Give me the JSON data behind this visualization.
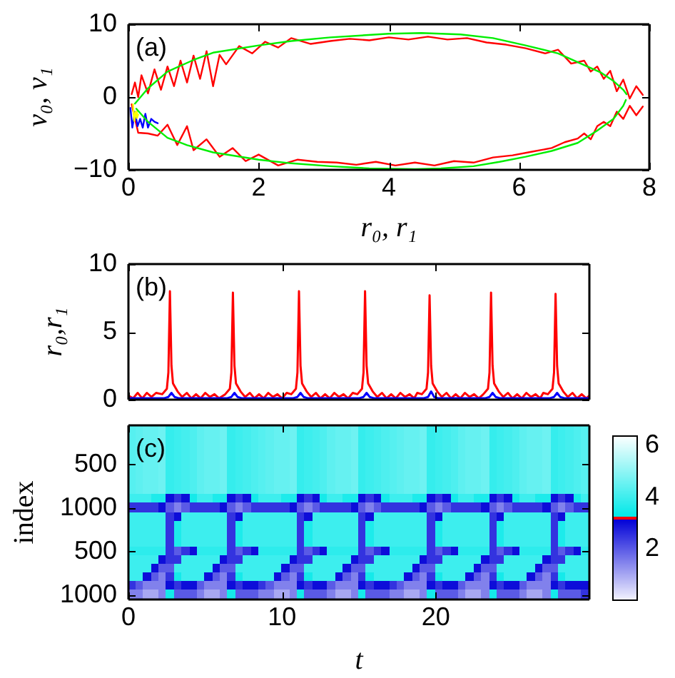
{
  "chart_data": [
    {
      "type": "line",
      "xlabel": "r₀, r₁",
      "ylabel": "v₀, v₁",
      "annotations": [
        "(a)"
      ],
      "xlim": [
        0,
        8
      ],
      "ylim": [
        -10,
        10
      ],
      "xticks": [
        0,
        2,
        4,
        6,
        8
      ],
      "yticks": [
        -10,
        0,
        10
      ],
      "series": [
        {
          "color": "#ff0000",
          "x": [
            0.05,
            0.1,
            0.15,
            0.2,
            0.3,
            0.4,
            0.5,
            0.6,
            0.7,
            0.8,
            0.9,
            1.0,
            1.1,
            1.2,
            1.3,
            1.4,
            1.5,
            1.7,
            1.9,
            2.1,
            2.3,
            2.5,
            2.8,
            3.1,
            3.4,
            3.7,
            4.0,
            4.3,
            4.6,
            4.9,
            5.2,
            5.5,
            5.8,
            6.1,
            6.4,
            6.6,
            6.8,
            7.0,
            7.1,
            7.2,
            7.3,
            7.4,
            7.5,
            7.6,
            7.7,
            7.8,
            7.9
          ],
          "values": [
            0.4,
            2.0,
            0.0,
            3.0,
            0.5,
            3.8,
            1.0,
            4.2,
            1.5,
            5.0,
            2.0,
            5.7,
            2.5,
            6.3,
            1.5,
            5.8,
            4.5,
            7.0,
            6.0,
            7.6,
            6.8,
            8.1,
            7.3,
            7.7,
            8.0,
            7.8,
            8.2,
            7.9,
            8.3,
            7.9,
            8.1,
            7.5,
            7.2,
            6.7,
            6.0,
            6.5,
            4.6,
            5.0,
            3.5,
            4.2,
            2.5,
            3.6,
            0.8,
            2.4,
            -0.2,
            1.5,
            0.3
          ]
        },
        {
          "color": "#ff0000",
          "x": [
            0.05,
            0.15,
            0.3,
            0.45,
            0.6,
            0.75,
            0.9,
            1.0,
            1.2,
            1.4,
            1.6,
            1.8,
            2.0,
            2.3,
            2.6,
            2.9,
            3.2,
            3.5,
            3.8,
            4.1,
            4.4,
            4.7,
            5.0,
            5.3,
            5.6,
            5.9,
            6.2,
            6.5,
            6.7,
            6.9,
            7.0,
            7.1,
            7.2,
            7.3,
            7.4,
            7.5,
            7.6,
            7.7,
            7.8,
            7.9
          ],
          "values": [
            -1.0,
            -4.9,
            -5.0,
            -5.3,
            -3.8,
            -6.6,
            -4.0,
            -7.3,
            -5.8,
            -8.2,
            -7.0,
            -8.8,
            -7.9,
            -9.4,
            -8.6,
            -8.9,
            -9.0,
            -9.3,
            -8.9,
            -9.4,
            -9.0,
            -9.4,
            -8.8,
            -9.0,
            -8.3,
            -8.0,
            -7.5,
            -7.0,
            -6.2,
            -5.7,
            -5.0,
            -5.8,
            -4.0,
            -3.4,
            -4.0,
            -2.0,
            -3.0,
            -1.2,
            -2.5,
            -1.3
          ]
        },
        {
          "color": "#0000ff",
          "x": [
            0.03,
            0.06,
            0.1,
            0.14,
            0.18,
            0.22,
            0.26,
            0.3,
            0.35,
            0.4,
            0.45
          ],
          "values": [
            -1.5,
            -4.2,
            -2.0,
            -4.0,
            -3.0,
            -4.2,
            -2.3,
            -4.2,
            -3.0,
            -3.4,
            -3.6
          ]
        },
        {
          "color": "#ffff00",
          "x": [
            0.07,
            0.09,
            0.11,
            0.13,
            0.15
          ],
          "values": [
            -1.0,
            -3.3,
            -2.0,
            -2.9,
            -2.4
          ]
        },
        {
          "color": "#00ee00",
          "x": [
            0.1,
            0.3,
            0.6,
            1.0,
            1.3,
            2.0,
            2.5,
            3.1,
            4.0,
            4.5,
            5.1,
            5.6,
            6.1,
            6.6,
            6.9,
            7.25,
            7.45,
            7.6,
            7.65
          ],
          "values": [
            -0.9,
            1.2,
            3.5,
            5.1,
            6.1,
            7.1,
            7.7,
            8.2,
            8.7,
            8.8,
            8.6,
            8.1,
            7.1,
            6.0,
            4.8,
            3.4,
            2.2,
            1.0,
            0.4
          ]
        },
        {
          "color": "#00ee00",
          "x": [
            0.12,
            0.3,
            0.6,
            0.9,
            1.3,
            2.0,
            2.5,
            3.1,
            3.7,
            4.4,
            4.8,
            5.3,
            5.7,
            6.1,
            6.5,
            6.9,
            7.2,
            7.45,
            7.6,
            7.64
          ],
          "values": [
            -1.6,
            -3.4,
            -5.6,
            -6.6,
            -7.6,
            -8.6,
            -9.1,
            -9.5,
            -9.8,
            -9.9,
            -9.8,
            -9.5,
            -8.9,
            -8.2,
            -7.4,
            -6.3,
            -4.6,
            -3.0,
            -1.2,
            -0.4
          ]
        }
      ]
    },
    {
      "type": "line",
      "ylabel": "r₀,r₁",
      "annotations": [
        "(b)"
      ],
      "xlim": [
        0,
        30
      ],
      "ylim": [
        0,
        10
      ],
      "xticks": [
        {
          "value": 0,
          "label": null
        },
        {
          "value": 10,
          "label": null
        },
        {
          "value": 20,
          "label": null
        }
      ],
      "yticks": [
        0,
        5,
        10
      ],
      "tick_labels": "y",
      "series": [
        {
          "color": "#ff0000",
          "x": [
            0,
            0.3,
            0.6,
            0.9,
            1.2,
            1.5,
            1.8,
            2.2,
            2.5,
            2.6,
            2.7,
            2.8,
            2.9,
            3.2,
            3.5,
            3.8,
            4.1,
            4.4,
            4.7,
            5.0,
            5.3,
            5.6,
            5.9,
            6.3,
            6.6,
            6.7,
            6.8,
            6.9,
            7.0,
            7.3,
            7.6,
            7.9,
            8.2,
            8.5,
            8.8,
            9.1,
            9.4,
            9.7,
            10.0,
            10.3,
            10.6,
            10.9,
            11.0,
            11.1,
            11.2,
            11.3,
            11.6,
            11.9,
            12.2,
            12.5,
            12.8,
            13.1,
            13.4,
            13.7,
            14.0,
            14.3,
            14.6,
            14.9,
            15.2,
            15.3,
            15.4,
            15.5,
            15.6,
            15.9,
            16.2,
            16.5,
            16.8,
            17.1,
            17.4,
            17.7,
            18.0,
            18.3,
            18.6,
            18.8,
            19.1,
            19.4,
            19.5,
            19.6,
            19.7,
            19.8,
            20.1,
            20.4,
            20.7,
            21.0,
            21.3,
            21.6,
            21.9,
            22.2,
            22.5,
            22.8,
            23.1,
            23.4,
            23.5,
            23.6,
            23.7,
            23.8,
            24.1,
            24.4,
            24.7,
            25.0,
            25.3,
            25.6,
            25.9,
            26.2,
            26.5,
            26.8,
            27.0,
            27.3,
            27.6,
            27.7,
            27.8,
            27.9,
            28.0,
            28.3,
            28.6,
            28.9,
            29.2,
            29.5,
            29.8,
            30
          ],
          "values": [
            0.3,
            0.1,
            0.5,
            0.1,
            0.5,
            0.2,
            0.5,
            0.4,
            0.8,
            2,
            8,
            2.5,
            1.2,
            0.6,
            0.2,
            0.5,
            0.1,
            0.4,
            0.1,
            0.5,
            0.2,
            0.4,
            0.1,
            0.4,
            0.8,
            2,
            7.9,
            2.5,
            1.2,
            0.6,
            0.2,
            0.5,
            0.1,
            0.4,
            0.1,
            0.5,
            0.2,
            0.4,
            0.1,
            0.5,
            0.4,
            0.8,
            2,
            8,
            2.5,
            1.2,
            0.6,
            0.2,
            0.5,
            0.1,
            0.4,
            0.1,
            0.5,
            0.2,
            0.4,
            0.1,
            0.5,
            0.4,
            0.8,
            2,
            8,
            2.5,
            1.2,
            0.6,
            0.2,
            0.5,
            0.1,
            0.4,
            0.1,
            0.5,
            0.2,
            0.4,
            0.1,
            0.5,
            0.4,
            0.8,
            2,
            7.7,
            2.5,
            1.2,
            0.6,
            0.2,
            0.5,
            0.1,
            0.4,
            0.1,
            0.5,
            0.2,
            0.4,
            0.1,
            0.4,
            0.8,
            2,
            7.9,
            2.5,
            1.2,
            0.6,
            0.2,
            0.5,
            0.1,
            0.4,
            0.1,
            0.5,
            0.2,
            0.4,
            0.1,
            0.5,
            0.4,
            0.8,
            2,
            7.8,
            2.5,
            1.2,
            0.6,
            0.2,
            0.5,
            0.1,
            0.4,
            0.1,
            0.3
          ]
        },
        {
          "color": "#0000ff",
          "x": [
            0,
            2.3,
            2.6,
            2.8,
            3.0,
            3.3,
            6.4,
            6.7,
            6.9,
            7.1,
            7.4,
            10.7,
            11.0,
            11.2,
            11.4,
            11.7,
            15.0,
            15.3,
            15.5,
            15.7,
            16.0,
            19.2,
            19.5,
            19.7,
            19.9,
            20.2,
            23.2,
            23.5,
            23.7,
            23.9,
            24.2,
            27.4,
            27.7,
            27.9,
            28.1,
            28.4,
            30
          ],
          "values": [
            0.1,
            0.1,
            0.2,
            0.5,
            0.2,
            0.1,
            0.1,
            0.2,
            0.5,
            0.2,
            0.1,
            0.1,
            0.2,
            0.5,
            0.2,
            0.1,
            0.1,
            0.2,
            0.5,
            0.2,
            0.1,
            0.1,
            0.2,
            0.6,
            0.2,
            0.1,
            0.1,
            0.2,
            0.5,
            0.2,
            0.1,
            0.1,
            0.2,
            0.5,
            0.2,
            0.1,
            0.1
          ]
        }
      ]
    },
    {
      "type": "heatmap",
      "xlabel": "t",
      "ylabel": "index",
      "annotations": [
        "(c)"
      ],
      "x": [
        0.25,
        0.75,
        1.25,
        1.75,
        2.25,
        2.75,
        3.25,
        3.75,
        4.25,
        4.75,
        5.25,
        5.75,
        6.25,
        6.75,
        7.25,
        7.75,
        8.25,
        8.75,
        9.25,
        9.75,
        10.25,
        10.75,
        11.25,
        11.75,
        12.25,
        12.75,
        13.25,
        13.75,
        14.25,
        14.75,
        15.25,
        15.75,
        16.25,
        16.75,
        17.25,
        17.75,
        18.25,
        18.75,
        19.25,
        19.75,
        20.25,
        20.75,
        21.25,
        21.75,
        22.25,
        22.75,
        23.25,
        23.75,
        24.25,
        24.75,
        25.25,
        25.75,
        26.25,
        26.75,
        27.25,
        27.75,
        28.25,
        28.75,
        29.25,
        29.75
      ],
      "xlim": [
        0,
        30
      ],
      "xticks": [
        0,
        10,
        20
      ],
      "y_categories": [
        null,
        null,
        null,
        null,
        "500",
        null,
        null,
        null,
        null,
        "1000",
        null,
        null,
        null,
        null,
        "500",
        null,
        null,
        null,
        null,
        "1000"
      ],
      "cells": [
        [
          4.3,
          4.4,
          4.5,
          4.5,
          4.6,
          3.9,
          4,
          4.1,
          4.2,
          4.4,
          4.5,
          4.5,
          4.6,
          3.9,
          4,
          4.1,
          4.2,
          4.3,
          4.4,
          4.5,
          4.5,
          4.6,
          3.9,
          4,
          4.1,
          4.2,
          4.4,
          4.5,
          4.5,
          4.6,
          3.9,
          4,
          4.1,
          4.2,
          4.3,
          4.4,
          4.5,
          4.5,
          4.6,
          3.9,
          4,
          4.1,
          4.2,
          4.4,
          4.5,
          4.5,
          4.6,
          3.9,
          4,
          4.1,
          4.2,
          4.4,
          4.5,
          4.5,
          4.6,
          3.9,
          4,
          4.1,
          4.2,
          4.3
        ],
        [
          4.3,
          4.4,
          4.5,
          4.5,
          4.6,
          3.9,
          4,
          4.1,
          4.2,
          4.4,
          4.5,
          4.5,
          4.6,
          3.9,
          4,
          4.1,
          4.2,
          4.3,
          4.4,
          4.5,
          4.5,
          4.6,
          3.9,
          4,
          4.1,
          4.2,
          4.4,
          4.5,
          4.5,
          4.6,
          3.9,
          4,
          4.1,
          4.2,
          4.3,
          4.4,
          4.5,
          4.5,
          4.6,
          3.9,
          4,
          4.1,
          4.2,
          4.4,
          4.5,
          4.5,
          4.6,
          3.9,
          4,
          4.1,
          4.2,
          4.4,
          4.5,
          4.5,
          4.6,
          3.9,
          4,
          4.1,
          4.2,
          4.3
        ],
        [
          4.3,
          4.4,
          4.5,
          4.5,
          4.6,
          3.9,
          4,
          4.1,
          4.2,
          4.4,
          4.5,
          4.5,
          4.6,
          3.9,
          4,
          4.1,
          4.2,
          4.3,
          4.4,
          4.5,
          4.5,
          4.6,
          3.9,
          4,
          4.1,
          4.2,
          4.4,
          4.5,
          4.5,
          4.6,
          3.9,
          4,
          4.1,
          4.2,
          4.3,
          4.4,
          4.5,
          4.5,
          4.6,
          3.9,
          4,
          4.1,
          4.2,
          4.4,
          4.5,
          4.5,
          4.6,
          3.9,
          4,
          4.1,
          4.2,
          4.4,
          4.5,
          4.5,
          4.6,
          3.9,
          4,
          4.1,
          4.2,
          4.3
        ],
        [
          4.3,
          4.4,
          4.5,
          4.5,
          4.6,
          3.9,
          4,
          4.1,
          4.2,
          4.4,
          4.5,
          4.5,
          4.6,
          3.9,
          4,
          4.1,
          4.2,
          4.3,
          4.4,
          4.5,
          4.5,
          4.6,
          3.9,
          4,
          4.1,
          4.2,
          4.4,
          4.5,
          4.5,
          4.6,
          3.9,
          4,
          4.1,
          4.2,
          4.3,
          4.4,
          4.5,
          4.5,
          4.6,
          3.9,
          4,
          4.1,
          4.2,
          4.4,
          4.5,
          4.5,
          4.6,
          3.9,
          4,
          4.1,
          4.2,
          4.4,
          4.5,
          4.5,
          4.6,
          3.9,
          4,
          4.1,
          4.2,
          4.3
        ],
        [
          4.3,
          4.4,
          4.5,
          4.5,
          4.6,
          3.9,
          4,
          4.1,
          4.2,
          4.4,
          4.5,
          4.5,
          4.6,
          3.9,
          4,
          4.1,
          4.2,
          4.3,
          4.4,
          4.5,
          4.5,
          4.6,
          3.9,
          4,
          4.1,
          4.2,
          4.4,
          4.5,
          4.5,
          4.6,
          3.9,
          4,
          4.1,
          4.2,
          4.3,
          4.4,
          4.5,
          4.5,
          4.6,
          3.9,
          4,
          4.1,
          4.2,
          4.4,
          4.5,
          4.5,
          4.6,
          3.9,
          4,
          4.1,
          4.2,
          4.4,
          4.5,
          4.5,
          4.6,
          3.9,
          4,
          4.1,
          4.2,
          4.3
        ],
        [
          4.3,
          4.4,
          4.5,
          4.5,
          4.6,
          3.9,
          4,
          4.1,
          4.2,
          4.4,
          4.5,
          4.5,
          4.6,
          3.9,
          4,
          4.1,
          4.2,
          4.3,
          4.4,
          4.5,
          4.5,
          4.6,
          3.9,
          4,
          4.1,
          4.2,
          4.4,
          4.5,
          4.5,
          4.6,
          3.9,
          4,
          4.1,
          4.2,
          4.3,
          4.4,
          4.5,
          4.5,
          4.6,
          3.9,
          4,
          4.1,
          4.2,
          4.4,
          4.5,
          4.5,
          4.6,
          3.9,
          4,
          4.1,
          4.2,
          4.4,
          4.5,
          4.5,
          4.6,
          3.9,
          4,
          4.1,
          4.2,
          4.3
        ],
        [
          4.3,
          4.4,
          4.5,
          4.5,
          4.6,
          3.9,
          4,
          4.1,
          4.2,
          4.4,
          4.5,
          4.5,
          4.6,
          3.9,
          4,
          4.1,
          4.2,
          4.3,
          4.4,
          4.5,
          4.5,
          4.6,
          3.9,
          4,
          4.1,
          4.2,
          4.4,
          4.5,
          4.5,
          4.6,
          3.9,
          4,
          4.1,
          4.2,
          4.3,
          4.4,
          4.5,
          4.5,
          4.6,
          3.9,
          4,
          4.1,
          4.2,
          4.4,
          4.5,
          4.5,
          4.6,
          3.9,
          4,
          4.1,
          4.2,
          4.4,
          4.5,
          4.5,
          4.6,
          3.9,
          4,
          4.1,
          4.2,
          4.3
        ],
        [
          4.3,
          4.4,
          4.5,
          4.5,
          4.6,
          3.9,
          4,
          4.1,
          4.2,
          4.4,
          4.5,
          4.5,
          4.6,
          3.9,
          4,
          4.1,
          4.2,
          4.3,
          4.4,
          4.5,
          4.5,
          4.6,
          3.9,
          4,
          4.1,
          4.2,
          4.4,
          4.5,
          4.5,
          4.6,
          3.9,
          4,
          4.1,
          4.2,
          4.3,
          4.4,
          4.5,
          4.5,
          4.6,
          3.9,
          4,
          4.1,
          4.2,
          4.4,
          4.5,
          4.5,
          4.6,
          3.9,
          4,
          4.1,
          4.2,
          4.4,
          4.5,
          4.5,
          4.6,
          3.9,
          4,
          4.1,
          4.2,
          4.3
        ],
        [
          4,
          4,
          4,
          3.6,
          3.6,
          3,
          2.5,
          3,
          3.5,
          4,
          4,
          3.6,
          3.6,
          3,
          2.5,
          3,
          3.5,
          4,
          4,
          4,
          3.6,
          3.6,
          3,
          2.5,
          3,
          3.5,
          4,
          4,
          3.6,
          3.6,
          3,
          2.5,
          3,
          3.5,
          4,
          4,
          4,
          3.6,
          3.6,
          3,
          2.5,
          3,
          3.5,
          4,
          4,
          3.6,
          3.6,
          3,
          2.5,
          3,
          3.5,
          4,
          4,
          3.6,
          3.6,
          3,
          2.5,
          3,
          3.5,
          4
        ],
        [
          2.5,
          2.5,
          2.5,
          2.5,
          3,
          2,
          1.5,
          2,
          2.5,
          2.5,
          2.5,
          2.5,
          3,
          2,
          1.5,
          2,
          2.5,
          2.5,
          2.5,
          2.5,
          2.5,
          3,
          2,
          1.5,
          2,
          2.5,
          2.5,
          2.5,
          2.5,
          3,
          2,
          1.5,
          2,
          2.5,
          2.5,
          2.5,
          2.5,
          2.5,
          3,
          2,
          1.5,
          2,
          2.5,
          2.5,
          2.5,
          2.5,
          3,
          2,
          1.5,
          2,
          2.5,
          2.5,
          2.5,
          2.5,
          3,
          2,
          1.5,
          2,
          2.5,
          2.5
        ],
        [
          4,
          4,
          4,
          4,
          4,
          2.5,
          3,
          4,
          4,
          4,
          4,
          4,
          4,
          2.5,
          3,
          4,
          4,
          4,
          4,
          4,
          4,
          4,
          2.5,
          3,
          4,
          4,
          4,
          4,
          4,
          4,
          2.5,
          3,
          4,
          4,
          4,
          4,
          4,
          4,
          4,
          2.5,
          3,
          4,
          4,
          4,
          4,
          4,
          4,
          2.5,
          3,
          4,
          4,
          4,
          4,
          4,
          4,
          2.5,
          3,
          4,
          4,
          4
        ],
        [
          4,
          4,
          4,
          4,
          4,
          2.5,
          3.6,
          4,
          4,
          4,
          4,
          4,
          4,
          2.5,
          3.6,
          4,
          4,
          4,
          4,
          4,
          4,
          4,
          2.5,
          3.6,
          4,
          4,
          4,
          4,
          4,
          4,
          2.5,
          3.6,
          4,
          4,
          4,
          4,
          4,
          4,
          4,
          2.5,
          3.6,
          4,
          4,
          4,
          4,
          4,
          4,
          2.5,
          3.6,
          4,
          4,
          4,
          4,
          4,
          4,
          2.5,
          3.6,
          4,
          4,
          4
        ],
        [
          4,
          4,
          4,
          4,
          4,
          2.5,
          3.6,
          4,
          4,
          4,
          4,
          4,
          4,
          2.5,
          3.6,
          4,
          4,
          4,
          4,
          4,
          4,
          4,
          2.5,
          3.6,
          4,
          4,
          4,
          4,
          4,
          4,
          2.5,
          3.6,
          4,
          4,
          4,
          4,
          4,
          4,
          4,
          2.5,
          3.6,
          4,
          4,
          4,
          4,
          4,
          4,
          2.5,
          3.6,
          4,
          4,
          4,
          4,
          4,
          4,
          2.5,
          3.6,
          4,
          4,
          4
        ],
        [
          4,
          4,
          4,
          4,
          4,
          2.5,
          3.6,
          4,
          4,
          4,
          4,
          4,
          4,
          2.5,
          3.6,
          4,
          4,
          4,
          4,
          4,
          4,
          4,
          2.5,
          3.6,
          4,
          4,
          4,
          4,
          4,
          4,
          2.5,
          3.6,
          4,
          4,
          4,
          4,
          4,
          4,
          4,
          2.5,
          3.6,
          4,
          4,
          4,
          4,
          4,
          4,
          2.5,
          3.6,
          4,
          4,
          4,
          4,
          4,
          4,
          2.5,
          3.6,
          4,
          4,
          4
        ],
        [
          3.8,
          3.8,
          3.8,
          3.8,
          3.8,
          2.5,
          2,
          2.5,
          3,
          3.8,
          3.8,
          3.8,
          3.8,
          2.5,
          2,
          2.5,
          3,
          3.8,
          3.8,
          3.8,
          3.8,
          3.8,
          2.5,
          2,
          2.5,
          3,
          3.8,
          3.8,
          3.8,
          3.8,
          2.5,
          2,
          2.5,
          3,
          3.8,
          3.8,
          3.8,
          3.8,
          3.8,
          2.5,
          2,
          2.5,
          3,
          3.8,
          3.8,
          3.8,
          3.8,
          2.5,
          2,
          2.5,
          3,
          3.8,
          3.8,
          3.8,
          3.8,
          2.5,
          2,
          2.5,
          3,
          3.8
        ],
        [
          4,
          4,
          4,
          4,
          3,
          2.5,
          2.5,
          4,
          4,
          4,
          4,
          4,
          3,
          2.5,
          2.5,
          4,
          4,
          4,
          4,
          4,
          4,
          3,
          2.5,
          2.5,
          4,
          4,
          4,
          4,
          4,
          3,
          2.5,
          2.5,
          4,
          4,
          4,
          4,
          4,
          4,
          3,
          2.5,
          2.5,
          4,
          4,
          4,
          4,
          4,
          3,
          2.5,
          2.5,
          4,
          4,
          4,
          4,
          4,
          3,
          2.5,
          2.5,
          4,
          4,
          4
        ],
        [
          4,
          4,
          4,
          3,
          2,
          2,
          4,
          4,
          4,
          4,
          4,
          3,
          2,
          2,
          4,
          4,
          4,
          4,
          4,
          4,
          3,
          2,
          2,
          4,
          4,
          4,
          4,
          4,
          3,
          2,
          2,
          4,
          4,
          4,
          4,
          4,
          4,
          3,
          2,
          2,
          4,
          4,
          4,
          4,
          4,
          3,
          2,
          2,
          4,
          4,
          4,
          4,
          4,
          3,
          2,
          2,
          4,
          4,
          4,
          4
        ],
        [
          4,
          4,
          3,
          2,
          1.5,
          2.5,
          3.5,
          4,
          4,
          4,
          3,
          2,
          1.5,
          2.5,
          3.5,
          4,
          4,
          4,
          4,
          3,
          2,
          1.5,
          2.5,
          3.5,
          4,
          4,
          4,
          3,
          2,
          1.5,
          2.5,
          3.5,
          4,
          4,
          4,
          4,
          3,
          2,
          1.5,
          2.5,
          3.5,
          4,
          4,
          4,
          3,
          2,
          1.5,
          2.5,
          3.5,
          4,
          4,
          4,
          3,
          2,
          1.5,
          2.5,
          3.5,
          4,
          4,
          4
        ],
        [
          2.5,
          2,
          1.5,
          1.5,
          1.5,
          3,
          2.5,
          3,
          3,
          2,
          1.5,
          1.5,
          1.5,
          3,
          2.5,
          3,
          3,
          2.5,
          2,
          1.5,
          1.5,
          1.5,
          3,
          2.5,
          3,
          3,
          2,
          1.5,
          1.5,
          1.5,
          3,
          2.5,
          3,
          3,
          2.5,
          2,
          1.5,
          1.5,
          1.5,
          3,
          2.5,
          3,
          3,
          2,
          1.5,
          1.5,
          1.5,
          3,
          2.5,
          3,
          3,
          2,
          1.5,
          1.5,
          1.5,
          3,
          2.5,
          3,
          3,
          3
        ],
        [
          1.5,
          1.5,
          1,
          1,
          1.5,
          3.5,
          2,
          2,
          2,
          1.5,
          1,
          1,
          1.5,
          3.5,
          2,
          2,
          2,
          1.5,
          1.5,
          1,
          1,
          1.5,
          3.5,
          2,
          2,
          2,
          1.5,
          1,
          1,
          1.5,
          3.5,
          2,
          2,
          2,
          1.5,
          1.5,
          1,
          1,
          1.5,
          3.5,
          2,
          2,
          2,
          1.5,
          1,
          1,
          1.5,
          3.5,
          2,
          2,
          2,
          1.5,
          1,
          1,
          1.5,
          3.5,
          2,
          2,
          2,
          2.5
        ]
      ],
      "clim": [
        0,
        6.4
      ],
      "cticks": [
        2,
        4,
        6
      ]
    }
  ]
}
